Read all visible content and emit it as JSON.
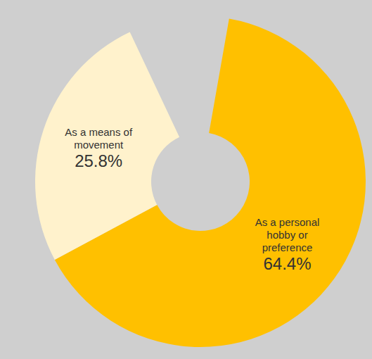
{
  "chart_data": {
    "type": "pie",
    "categories": [
      "As a means of movement",
      "As a personal hobby or preference"
    ],
    "values": [
      25.8,
      64.4
    ],
    "value_labels": [
      "25.8%",
      "64.4%"
    ],
    "colors": [
      "#fff2cc",
      "#ffc000"
    ],
    "data_labels": true,
    "legend": false
  }
}
